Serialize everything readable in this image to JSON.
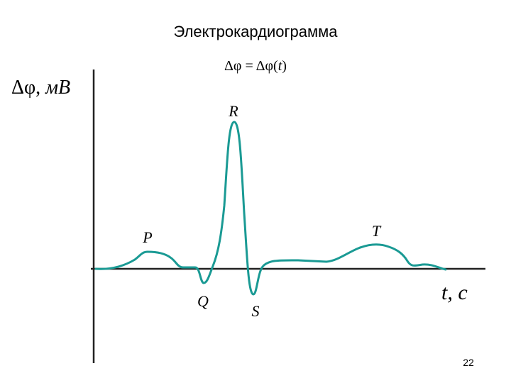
{
  "title": "Электрокардиограмма",
  "formula": [
    "Δφ = Δφ(",
    "t",
    ")"
  ],
  "y_axis_label": [
    "Δφ, ",
    "мВ"
  ],
  "x_axis_label": "t, c",
  "waves": {
    "P": "P",
    "Q": "Q",
    "R": "R",
    "S": "S",
    "T": "T"
  },
  "page_number": "22"
}
